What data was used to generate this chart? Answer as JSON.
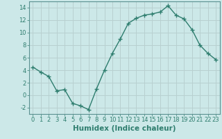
{
  "x": [
    0,
    1,
    2,
    3,
    4,
    5,
    6,
    7,
    8,
    9,
    10,
    11,
    12,
    13,
    14,
    15,
    16,
    17,
    18,
    19,
    20,
    21,
    22,
    23
  ],
  "y": [
    4.5,
    3.7,
    3.0,
    0.7,
    0.9,
    -1.3,
    -1.7,
    -2.3,
    1.0,
    4.0,
    6.7,
    9.0,
    11.5,
    12.3,
    12.8,
    13.0,
    13.3,
    14.3,
    12.8,
    12.2,
    10.5,
    8.0,
    6.7,
    5.7
  ],
  "line_color": "#2e7d6e",
  "marker": "+",
  "marker_size": 4,
  "bg_color": "#cce8e8",
  "grid_color": "#b8d0d0",
  "xlabel": "Humidex (Indice chaleur)",
  "xlabel_fontsize": 7.5,
  "xlabel_fontweight": "bold",
  "xlabel_color": "#2e7d6e",
  "ylim": [
    -3,
    15
  ],
  "xlim": [
    -0.5,
    23.5
  ],
  "yticks": [
    -2,
    0,
    2,
    4,
    6,
    8,
    10,
    12,
    14
  ],
  "xticks": [
    0,
    1,
    2,
    3,
    4,
    5,
    6,
    7,
    8,
    9,
    10,
    11,
    12,
    13,
    14,
    15,
    16,
    17,
    18,
    19,
    20,
    21,
    22,
    23
  ],
  "tick_color": "#2e7d6e",
  "tick_fontsize": 6,
  "spine_color": "#5a9090",
  "linewidth": 1.0
}
